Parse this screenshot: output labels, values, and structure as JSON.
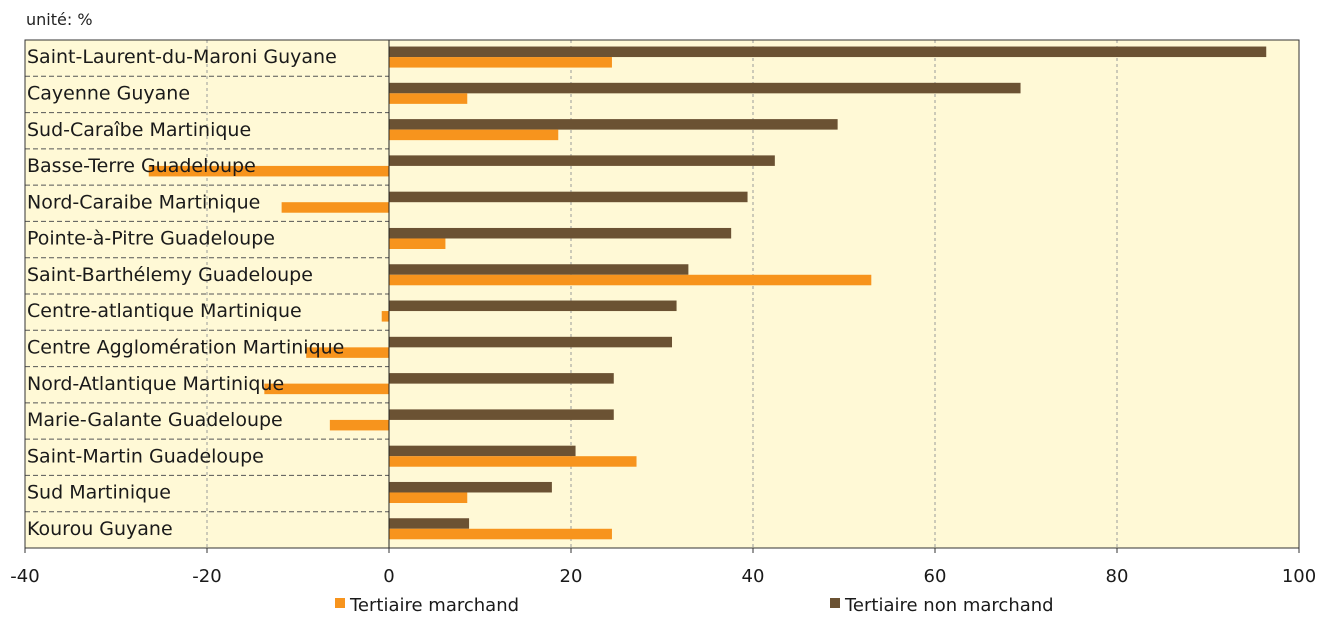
{
  "chart_data": {
    "type": "bar",
    "orientation": "horizontal",
    "unit_label": "unité: %",
    "categories": [
      "Saint-Laurent-du-Maroni Guyane",
      "Cayenne Guyane",
      "Sud-Caraîbe Martinique",
      "Basse-Terre Guadeloupe",
      "Nord-Caraibe Martinique",
      "Pointe-à-Pitre Guadeloupe",
      "Saint-Barthélemy Guadeloupe",
      "Centre-atlantique Martinique",
      "Centre Agglomération Martinique",
      "Nord-Atlantique Martinique",
      "Marie-Galante Guadeloupe",
      "Saint-Martin Guadeloupe",
      "Sud Martinique",
      "Kourou Guyane"
    ],
    "series": [
      {
        "name": "Tertiaire non marchand",
        "color": "#6b5233",
        "values": [
          96.4,
          69.4,
          49.3,
          42.4,
          39.4,
          37.6,
          32.9,
          31.6,
          31.1,
          24.7,
          24.7,
          20.5,
          17.9,
          8.8
        ]
      },
      {
        "name": "Tertiaire marchand",
        "color": "#f7941d",
        "values": [
          24.5,
          8.6,
          18.6,
          -26.4,
          -11.8,
          6.2,
          53.0,
          -0.8,
          -9.1,
          -13.7,
          -6.5,
          27.2,
          8.6,
          24.5
        ]
      }
    ],
    "xlim": [
      -40,
      100
    ],
    "xticks": [
      "-40",
      "-20",
      "0",
      "20",
      "40",
      "60",
      "80",
      "100"
    ],
    "grid": true,
    "legend": [
      "Tertiaire marchand",
      "Tertiaire non marchand"
    ],
    "legend_position": "bottom",
    "plot_background": "#fff9d6"
  }
}
